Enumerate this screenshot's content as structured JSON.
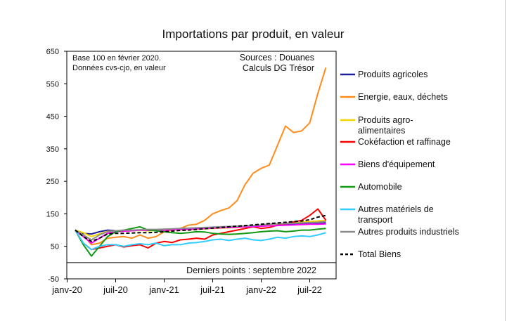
{
  "chart_data": {
    "type": "line",
    "title": "Importations par produit, en valeur",
    "notes": [
      "Base 100 en février 2020.",
      "Données cvs-cjo, en valeur"
    ],
    "source_lines": [
      "Sources : Douanes",
      "Calculs DG Trésor"
    ],
    "footer": "Derniers points : septembre  2022",
    "y_ticks": [
      "650",
      "550",
      "450",
      "350",
      "250",
      "150",
      "50",
      "-50"
    ],
    "x_ticks": [
      "janv-20",
      "juil-20",
      "janv-21",
      "juil-21",
      "janv-22",
      "juil-22"
    ],
    "ylim": [
      -50,
      650
    ],
    "x": [
      "févr-20",
      "mars-20",
      "avr-20",
      "mai-20",
      "juin-20",
      "juil-20",
      "août-20",
      "sept-20",
      "oct-20",
      "nov-20",
      "déc-20",
      "janv-21",
      "févr-21",
      "mars-21",
      "avr-21",
      "mai-21",
      "juin-21",
      "juil-21",
      "août-21",
      "sept-21",
      "oct-21",
      "nov-21",
      "déc-21",
      "janv-22",
      "févr-22",
      "mars-22",
      "avr-22",
      "mai-22",
      "juin-22",
      "juil-22",
      "août-22",
      "sept-22"
    ],
    "series": [
      {
        "name": "Produits agricoles",
        "color": "#1f1f99",
        "width": 2,
        "dash": "",
        "values": [
          100,
          90,
          88,
          95,
          100,
          98,
          97,
          98,
          100,
          100,
          99,
          100,
          101,
          102,
          104,
          105,
          105,
          106,
          107,
          108,
          109,
          110,
          112,
          114,
          115,
          116,
          117,
          118,
          120,
          120,
          120,
          122
        ]
      },
      {
        "name": "Energie, eaux, déchets",
        "color": "#ff8c1a",
        "width": 2,
        "dash": "",
        "values": [
          100,
          85,
          55,
          60,
          75,
          78,
          80,
          75,
          85,
          75,
          80,
          95,
          100,
          105,
          115,
          118,
          130,
          150,
          160,
          168,
          190,
          240,
          275,
          290,
          300,
          360,
          420,
          400,
          405,
          430,
          520,
          600
        ]
      },
      {
        "name": "Produits agro-alimentaires",
        "color": "#f2d400",
        "width": 2,
        "dash": "",
        "values": [
          100,
          92,
          80,
          88,
          96,
          97,
          97,
          98,
          99,
          98,
          99,
          100,
          100,
          101,
          102,
          103,
          104,
          105,
          106,
          107,
          108,
          110,
          112,
          114,
          116,
          118,
          120,
          122,
          124,
          126,
          128,
          130
        ]
      },
      {
        "name": "Cokéfaction et raffinage",
        "color": "#ff0000",
        "width": 2,
        "dash": "",
        "values": [
          100,
          60,
          40,
          45,
          50,
          55,
          48,
          52,
          55,
          45,
          60,
          65,
          62,
          70,
          72,
          75,
          72,
          85,
          90,
          95,
          100,
          105,
          110,
          105,
          108,
          115,
          120,
          125,
          130,
          145,
          165,
          130
        ]
      },
      {
        "name": "Biens d'équipement",
        "color": "#ff00ff",
        "width": 2,
        "dash": "",
        "values": [
          100,
          80,
          60,
          75,
          90,
          95,
          97,
          98,
          100,
          99,
          100,
          100,
          101,
          102,
          103,
          104,
          105,
          106,
          107,
          108,
          109,
          110,
          111,
          112,
          113,
          114,
          115,
          116,
          117,
          118,
          118,
          119
        ]
      },
      {
        "name": "Automobile",
        "color": "#119911",
        "width": 2,
        "dash": "",
        "values": [
          100,
          55,
          20,
          50,
          80,
          95,
          100,
          105,
          110,
          100,
          98,
          95,
          92,
          90,
          92,
          95,
          94,
          90,
          88,
          87,
          88,
          90,
          92,
          95,
          97,
          98,
          95,
          97,
          100,
          100,
          103,
          105
        ]
      },
      {
        "name": "Autres matériels de transport",
        "color": "#33ccff",
        "width": 2,
        "dash": "",
        "values": [
          100,
          60,
          40,
          50,
          55,
          55,
          50,
          55,
          58,
          55,
          60,
          52,
          55,
          55,
          60,
          62,
          65,
          70,
          72,
          68,
          72,
          75,
          70,
          68,
          72,
          78,
          75,
          80,
          82,
          80,
          85,
          92
        ]
      },
      {
        "name": "Autres produits industriels",
        "color": "#8c8c8c",
        "width": 2,
        "dash": "",
        "values": [
          100,
          85,
          70,
          85,
          95,
          98,
          100,
          100,
          101,
          102,
          102,
          103,
          104,
          105,
          106,
          107,
          108,
          109,
          110,
          111,
          112,
          113,
          114,
          116,
          118,
          119,
          120,
          121,
          122,
          123,
          124,
          126
        ]
      },
      {
        "name": "Total Biens",
        "color": "#000000",
        "width": 2,
        "dash": "5,3",
        "values": [
          100,
          80,
          65,
          75,
          88,
          90,
          90,
          91,
          92,
          92,
          93,
          95,
          97,
          99,
          100,
          102,
          104,
          106,
          108,
          110,
          112,
          114,
          116,
          118,
          120,
          122,
          124,
          126,
          128,
          132,
          140,
          145
        ]
      }
    ]
  }
}
